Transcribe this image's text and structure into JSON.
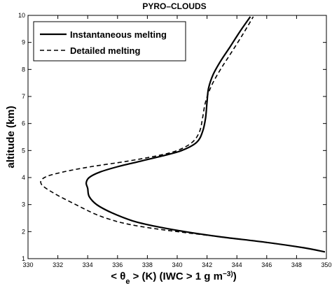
{
  "chart_data": {
    "type": "line",
    "title": "PYRO–CLOUDS",
    "xlabel": "< θe > (K)  (IWC > 1 g m−3)",
    "ylabel": "altitude (km)",
    "xlim": [
      330,
      350
    ],
    "ylim": [
      1,
      10
    ],
    "xticks": [
      "330",
      "332",
      "334",
      "336",
      "338",
      "340",
      "342",
      "344",
      "346",
      "348",
      "350"
    ],
    "yticks": [
      "1",
      "2",
      "3",
      "4",
      "5",
      "6",
      "7",
      "8",
      "9",
      "10"
    ],
    "grid": false,
    "legend_position": "top-left",
    "series": [
      {
        "name": "Instantaneous melting",
        "style": "solid",
        "color": "#000000",
        "x": [
          349.9,
          348.5,
          346.0,
          343.0,
          340.5,
          338.5,
          337.0,
          335.6,
          334.6,
          334.1,
          334.0,
          333.9,
          334.1,
          334.8,
          336.0,
          337.5,
          339.0,
          340.3,
          341.3,
          341.7,
          341.9,
          342.0,
          342.1,
          342.4,
          342.9,
          343.5,
          344.2,
          344.9
        ],
        "y": [
          1.25,
          1.4,
          1.6,
          1.8,
          2.0,
          2.2,
          2.4,
          2.7,
          3.0,
          3.3,
          3.6,
          3.8,
          4.0,
          4.2,
          4.4,
          4.6,
          4.8,
          5.0,
          5.3,
          5.7,
          6.2,
          6.8,
          7.3,
          7.8,
          8.3,
          8.8,
          9.4,
          9.95
        ]
      },
      {
        "name": "Detailed melting",
        "style": "dashed",
        "color": "#000000",
        "x": [
          349.9,
          348.5,
          346.0,
          343.0,
          340.0,
          338.0,
          336.5,
          335.5,
          334.5,
          333.2,
          331.8,
          330.9,
          331.1,
          332.3,
          334.2,
          336.6,
          338.6,
          340.0,
          341.0,
          341.5,
          341.7,
          341.9,
          342.3,
          342.9,
          343.6,
          344.4,
          345.1
        ],
        "y": [
          1.25,
          1.4,
          1.6,
          1.8,
          2.0,
          2.15,
          2.3,
          2.45,
          2.65,
          3.0,
          3.4,
          3.75,
          4.0,
          4.2,
          4.4,
          4.6,
          4.8,
          5.0,
          5.3,
          5.7,
          6.2,
          6.8,
          7.4,
          8.0,
          8.6,
          9.3,
          9.95
        ]
      }
    ]
  }
}
